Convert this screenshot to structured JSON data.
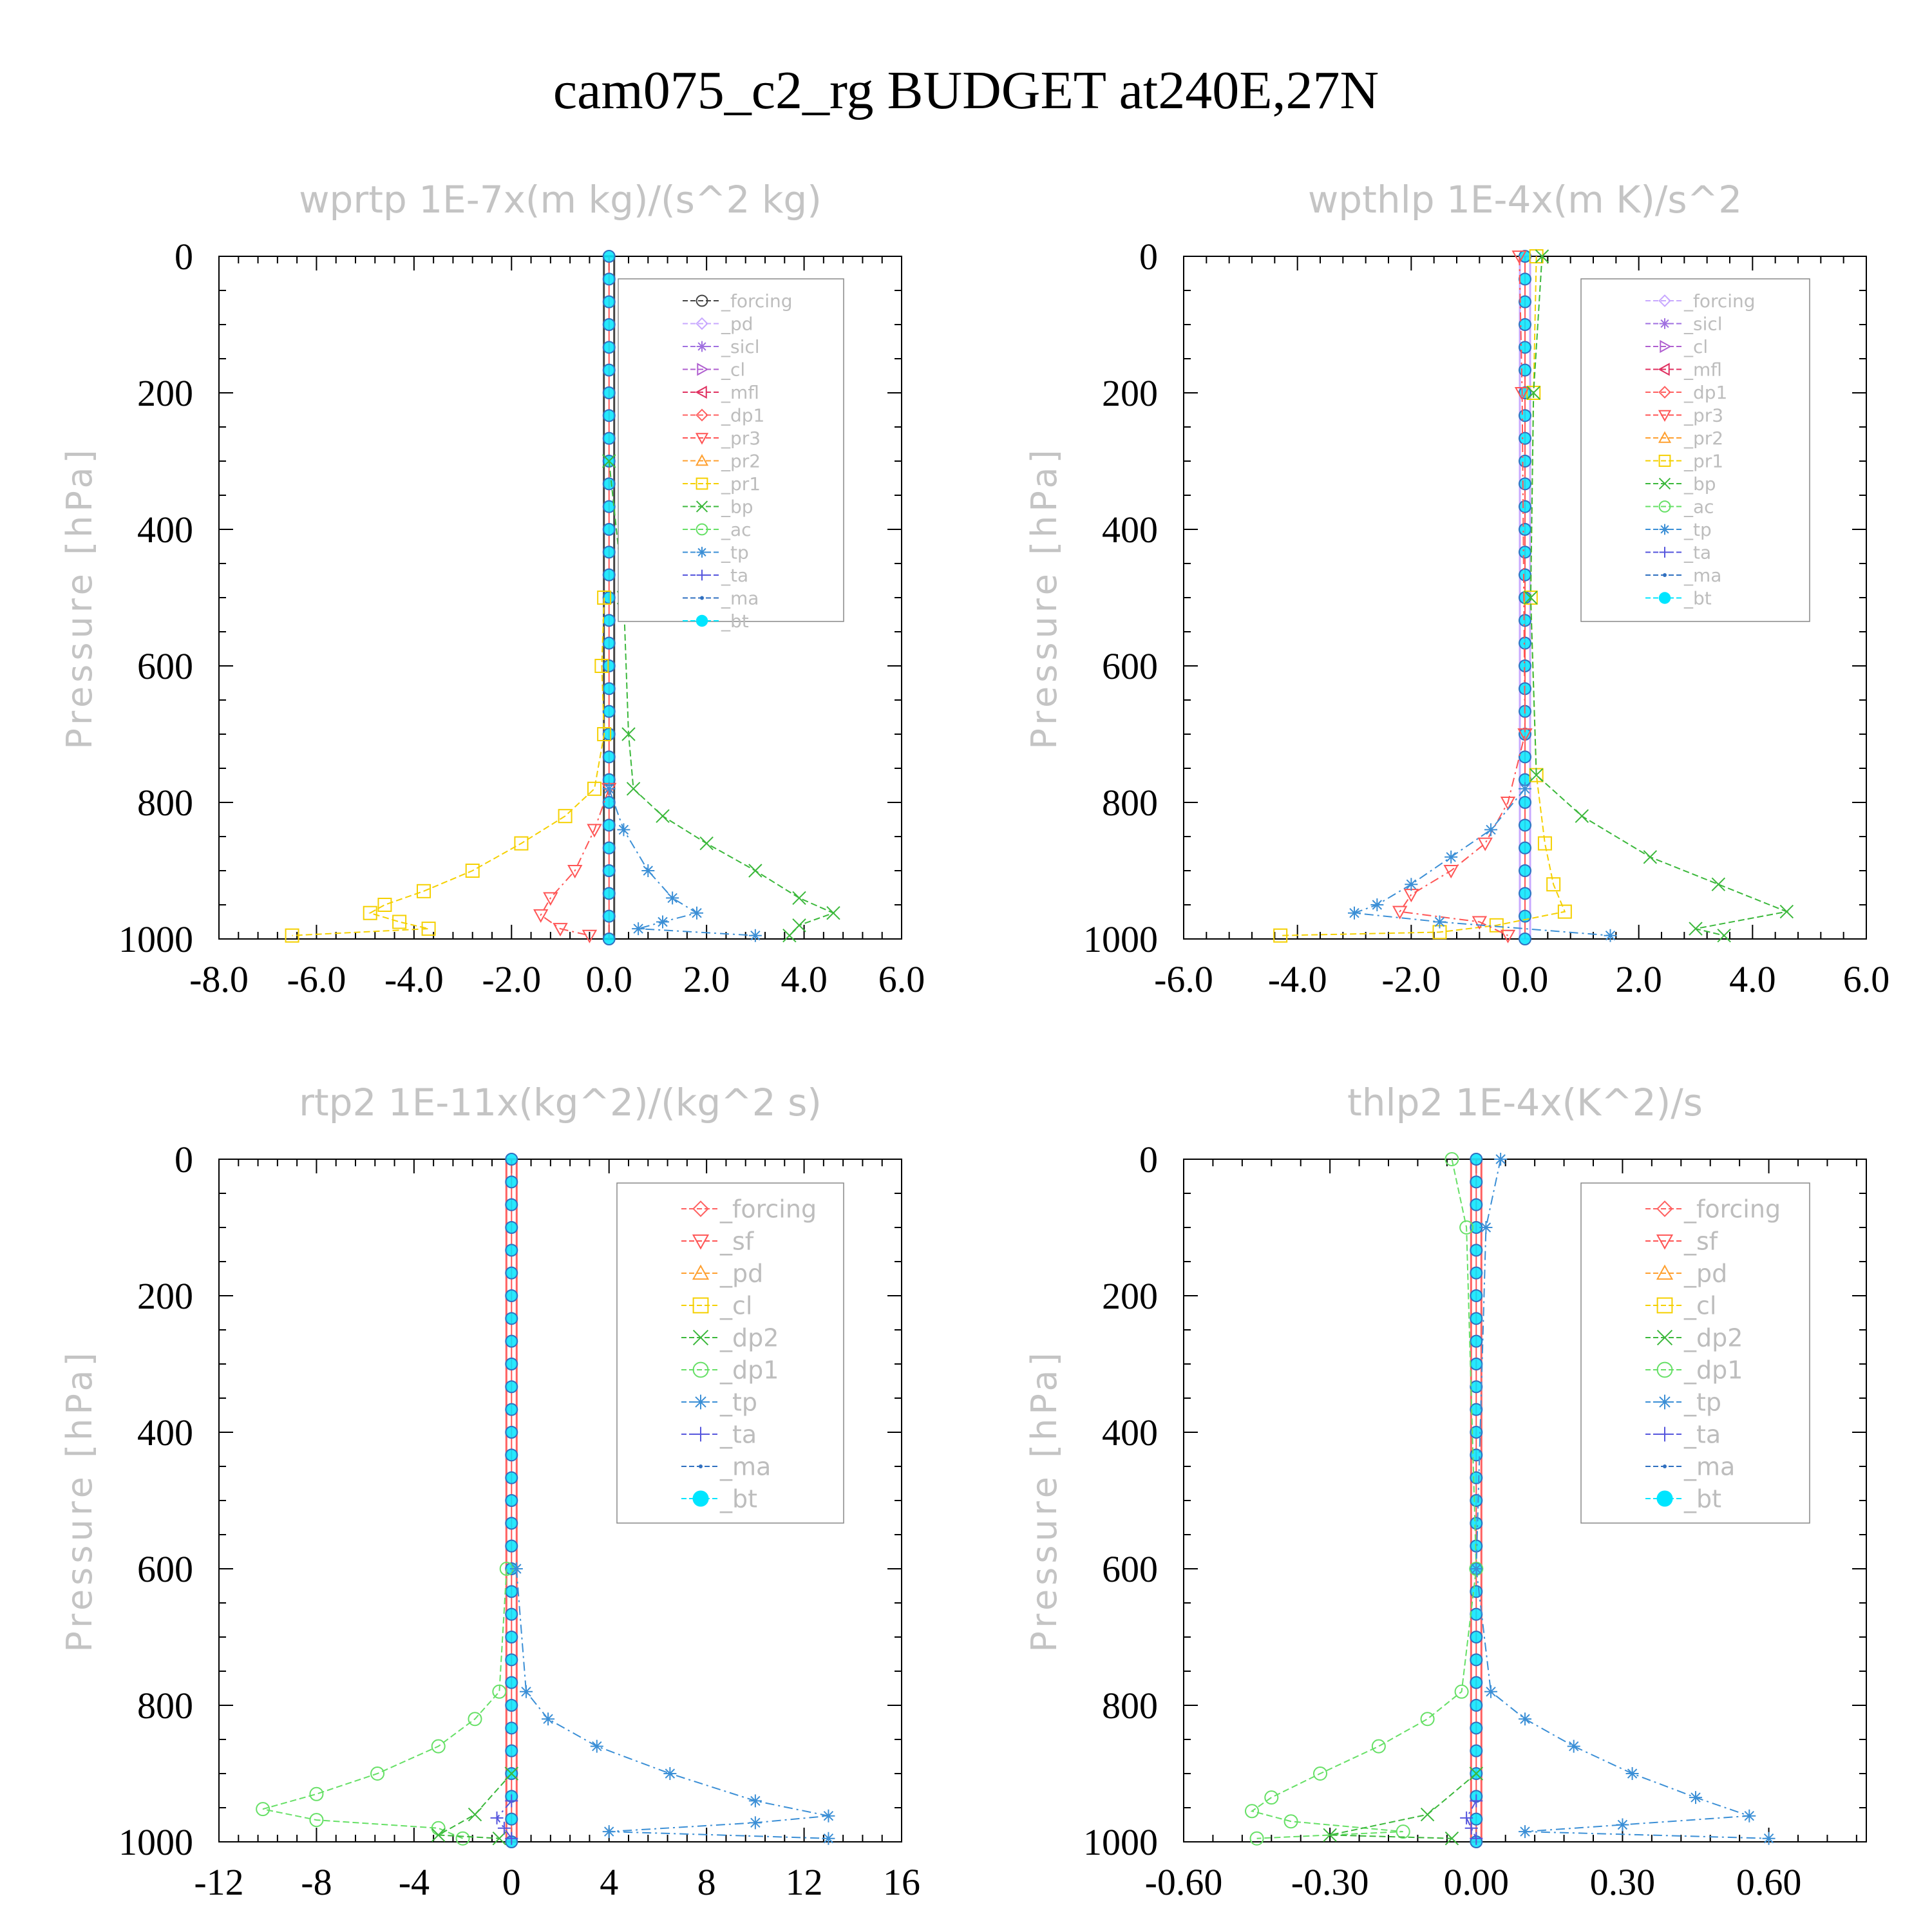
{
  "title": "cam075_c2_rg  BUDGET at240E,27N",
  "chart_data": [
    {
      "type": "line",
      "title": "wprtp   1E-7x(m kg)/(s^2 kg)",
      "ylabel": "Pressure [hPa]",
      "xlim": [
        -8,
        6
      ],
      "ylim": [
        1000,
        0
      ],
      "xticks": [
        "-8.0",
        "-6.0",
        "-4.0",
        "-2.0",
        "0.0",
        "2.0",
        "4.0",
        "6.0"
      ],
      "yticks": [
        "0",
        "200",
        "400",
        "600",
        "800",
        "1000"
      ],
      "legend": [
        "_forcing",
        "_pd",
        "_sicl",
        "_cl",
        "_mfl",
        "_dp1",
        "_pr3",
        "_pr2",
        "_pr1",
        "_bp",
        "_ac",
        "_tp",
        "_ta",
        "_ma",
        "_bt"
      ],
      "series": [
        {
          "name": "_pr1",
          "color": "#f5d000",
          "points": [
            [
              -0.1,
              500
            ],
            [
              -0.15,
              600
            ],
            [
              -0.1,
              700
            ],
            [
              -0.3,
              780
            ],
            [
              -0.9,
              820
            ],
            [
              -1.8,
              860
            ],
            [
              -2.8,
              900
            ],
            [
              -3.8,
              930
            ],
            [
              -4.6,
              950
            ],
            [
              -4.9,
              962
            ],
            [
              -4.3,
              975
            ],
            [
              -3.7,
              985
            ],
            [
              -6.5,
              995
            ]
          ]
        },
        {
          "name": "_pr3",
          "color": "#ff5555",
          "points": [
            [
              0,
              780
            ],
            [
              -0.3,
              840
            ],
            [
              -0.7,
              900
            ],
            [
              -1.2,
              940
            ],
            [
              -1.4,
              965
            ],
            [
              -1.0,
              985
            ],
            [
              -0.4,
              995
            ]
          ]
        },
        {
          "name": "_bp",
          "color": "#3bb83b",
          "points": [
            [
              0,
              300
            ],
            [
              0.3,
              500
            ],
            [
              0.4,
              700
            ],
            [
              0.5,
              780
            ],
            [
              1.1,
              820
            ],
            [
              2.0,
              860
            ],
            [
              3.0,
              900
            ],
            [
              3.9,
              940
            ],
            [
              4.6,
              962
            ],
            [
              3.9,
              980
            ],
            [
              3.7,
              995
            ]
          ]
        },
        {
          "name": "_tp",
          "color": "#3b8fd6",
          "points": [
            [
              0,
              780
            ],
            [
              0.3,
              840
            ],
            [
              0.8,
              900
            ],
            [
              1.3,
              940
            ],
            [
              1.8,
              962
            ],
            [
              1.1,
              975
            ],
            [
              0.6,
              985
            ],
            [
              3.0,
              995
            ]
          ]
        }
      ]
    },
    {
      "type": "line",
      "title": "wpthlp   1E-4x(m K)/s^2",
      "ylabel": "Pressure [hPa]",
      "xlim": [
        -6,
        6
      ],
      "ylim": [
        1000,
        0
      ],
      "xticks": [
        "-6.0",
        "-4.0",
        "-2.0",
        "0.0",
        "2.0",
        "4.0",
        "6.0"
      ],
      "yticks": [
        "0",
        "200",
        "400",
        "600",
        "800",
        "1000"
      ],
      "legend": [
        "_forcing",
        "_sicl",
        "_cl",
        "_mfl",
        "_dp1",
        "_pr3",
        "_pr2",
        "_pr1",
        "_bp",
        "_ac",
        "_tp",
        "_ta",
        "_ma",
        "_bt"
      ],
      "series": [
        {
          "name": "_pr1",
          "color": "#f5d000",
          "points": [
            [
              0.2,
              0
            ],
            [
              0.15,
              200
            ],
            [
              0.1,
              500
            ],
            [
              0.2,
              760
            ],
            [
              0.35,
              860
            ],
            [
              0.5,
              920
            ],
            [
              0.7,
              960
            ],
            [
              -0.5,
              980
            ],
            [
              -1.5,
              990
            ],
            [
              -4.3,
              995
            ]
          ]
        },
        {
          "name": "_pr3",
          "color": "#ff5555",
          "points": [
            [
              -0.1,
              0
            ],
            [
              -0.05,
              200
            ],
            [
              0,
              700
            ],
            [
              -0.3,
              800
            ],
            [
              -0.7,
              860
            ],
            [
              -1.3,
              900
            ],
            [
              -2.0,
              935
            ],
            [
              -2.2,
              960
            ],
            [
              -0.8,
              975
            ],
            [
              -0.3,
              995
            ]
          ]
        },
        {
          "name": "_bp",
          "color": "#3bb83b",
          "points": [
            [
              0.3,
              0
            ],
            [
              0.15,
              200
            ],
            [
              0.1,
              500
            ],
            [
              0.2,
              760
            ],
            [
              1.0,
              820
            ],
            [
              2.2,
              880
            ],
            [
              3.4,
              920
            ],
            [
              4.6,
              960
            ],
            [
              3.0,
              985
            ],
            [
              3.5,
              995
            ]
          ]
        },
        {
          "name": "_tp",
          "color": "#3b8fd6",
          "points": [
            [
              0,
              780
            ],
            [
              -0.6,
              840
            ],
            [
              -1.3,
              880
            ],
            [
              -2.0,
              920
            ],
            [
              -2.6,
              950
            ],
            [
              -3.0,
              962
            ],
            [
              -1.5,
              975
            ],
            [
              1.5,
              995
            ]
          ]
        }
      ]
    },
    {
      "type": "line",
      "title": "rtp2   1E-11x(kg^2)/(kg^2 s)",
      "ylabel": "Pressure [hPa]",
      "xlim": [
        -12,
        16
      ],
      "ylim": [
        1000,
        0
      ],
      "xticks": [
        "-12",
        "-8",
        "-4",
        "0",
        "4",
        "8",
        "12",
        "16"
      ],
      "yticks": [
        "0",
        "200",
        "400",
        "600",
        "800",
        "1000"
      ],
      "legend": [
        "_forcing",
        "_sf",
        "_pd",
        "_cl",
        "_dp2",
        "_dp1",
        "_tp",
        "_ta",
        "_ma",
        "_bt"
      ],
      "series": [
        {
          "name": "_dp1",
          "color": "#66e066",
          "points": [
            [
              -0.2,
              600
            ],
            [
              -0.5,
              780
            ],
            [
              -1.5,
              820
            ],
            [
              -3.0,
              860
            ],
            [
              -5.5,
              900
            ],
            [
              -8.0,
              930
            ],
            [
              -10.2,
              952
            ],
            [
              -8.0,
              968
            ],
            [
              -3.0,
              980
            ],
            [
              -2.0,
              995
            ]
          ]
        },
        {
          "name": "_tp",
          "color": "#3b8fd6",
          "points": [
            [
              0.2,
              600
            ],
            [
              0.6,
              780
            ],
            [
              1.5,
              820
            ],
            [
              3.5,
              860
            ],
            [
              6.5,
              900
            ],
            [
              10.0,
              940
            ],
            [
              13.0,
              962
            ],
            [
              10.0,
              972
            ],
            [
              4.0,
              985
            ],
            [
              13.0,
              995
            ]
          ]
        },
        {
          "name": "_dp2",
          "color": "#3bb83b",
          "points": [
            [
              0,
              900
            ],
            [
              -1.5,
              960
            ],
            [
              -3.0,
              990
            ],
            [
              -0.5,
              995
            ]
          ]
        },
        {
          "name": "_ta",
          "color": "#5555dd",
          "points": [
            [
              0,
              940
            ],
            [
              -0.6,
              965
            ],
            [
              -0.3,
              980
            ],
            [
              0,
              995
            ]
          ]
        }
      ]
    },
    {
      "type": "line",
      "title": "thlp2   1E-4x(K^2)/s",
      "ylabel": "Pressure [hPa]",
      "xlim": [
        -0.6,
        0.8
      ],
      "ylim": [
        1000,
        0
      ],
      "xticks": [
        "-0.60",
        "-0.30",
        "0.00",
        "0.30",
        "0.60"
      ],
      "yticks": [
        "0",
        "200",
        "400",
        "600",
        "800",
        "1000"
      ],
      "legend": [
        "_forcing",
        "_sf",
        "_pd",
        "_cl",
        "_dp2",
        "_dp1",
        "_tp",
        "_ta",
        "_ma",
        "_bt"
      ],
      "series": [
        {
          "name": "_dp1",
          "color": "#66e066",
          "points": [
            [
              -0.05,
              0
            ],
            [
              -0.02,
              100
            ],
            [
              0,
              600
            ],
            [
              -0.03,
              780
            ],
            [
              -0.1,
              820
            ],
            [
              -0.2,
              860
            ],
            [
              -0.32,
              900
            ],
            [
              -0.42,
              935
            ],
            [
              -0.46,
              955
            ],
            [
              -0.38,
              970
            ],
            [
              -0.15,
              985
            ],
            [
              -0.45,
              995
            ]
          ]
        },
        {
          "name": "_tp",
          "color": "#3b8fd6",
          "points": [
            [
              0.05,
              0
            ],
            [
              0.02,
              100
            ],
            [
              0,
              600
            ],
            [
              0.03,
              780
            ],
            [
              0.1,
              820
            ],
            [
              0.2,
              860
            ],
            [
              0.32,
              900
            ],
            [
              0.45,
              935
            ],
            [
              0.56,
              962
            ],
            [
              0.3,
              975
            ],
            [
              0.1,
              985
            ],
            [
              0.6,
              995
            ]
          ]
        },
        {
          "name": "_dp2",
          "color": "#3bb83b",
          "points": [
            [
              0,
              900
            ],
            [
              -0.1,
              960
            ],
            [
              -0.3,
              990
            ],
            [
              -0.05,
              995
            ]
          ]
        },
        {
          "name": "_ta",
          "color": "#5555dd",
          "points": [
            [
              0,
              940
            ],
            [
              -0.02,
              965
            ],
            [
              -0.01,
              980
            ],
            [
              0,
              995
            ]
          ]
        }
      ]
    }
  ],
  "colors": {
    "forcing": "#444444",
    "pd": "#c8a8ff",
    "sicl": "#a070e0",
    "cl": "#b05fd0",
    "mfl": "#e03060",
    "dp1": "#ff6060",
    "pr3": "#ff5555",
    "pr2": "#ffa030",
    "pr1": "#f5d000",
    "bp": "#3bb83b",
    "ac": "#66e066",
    "tp": "#3b8fd6",
    "ta": "#5555dd",
    "ma": "#3070c0",
    "bt": "#00e5ff",
    "forcing2": "#ff6060",
    "sf": "#ff5555",
    "pd2": "#ffa030",
    "cl2": "#f5d000",
    "dp2": "#3bb83b",
    "dp1b": "#66e066"
  }
}
